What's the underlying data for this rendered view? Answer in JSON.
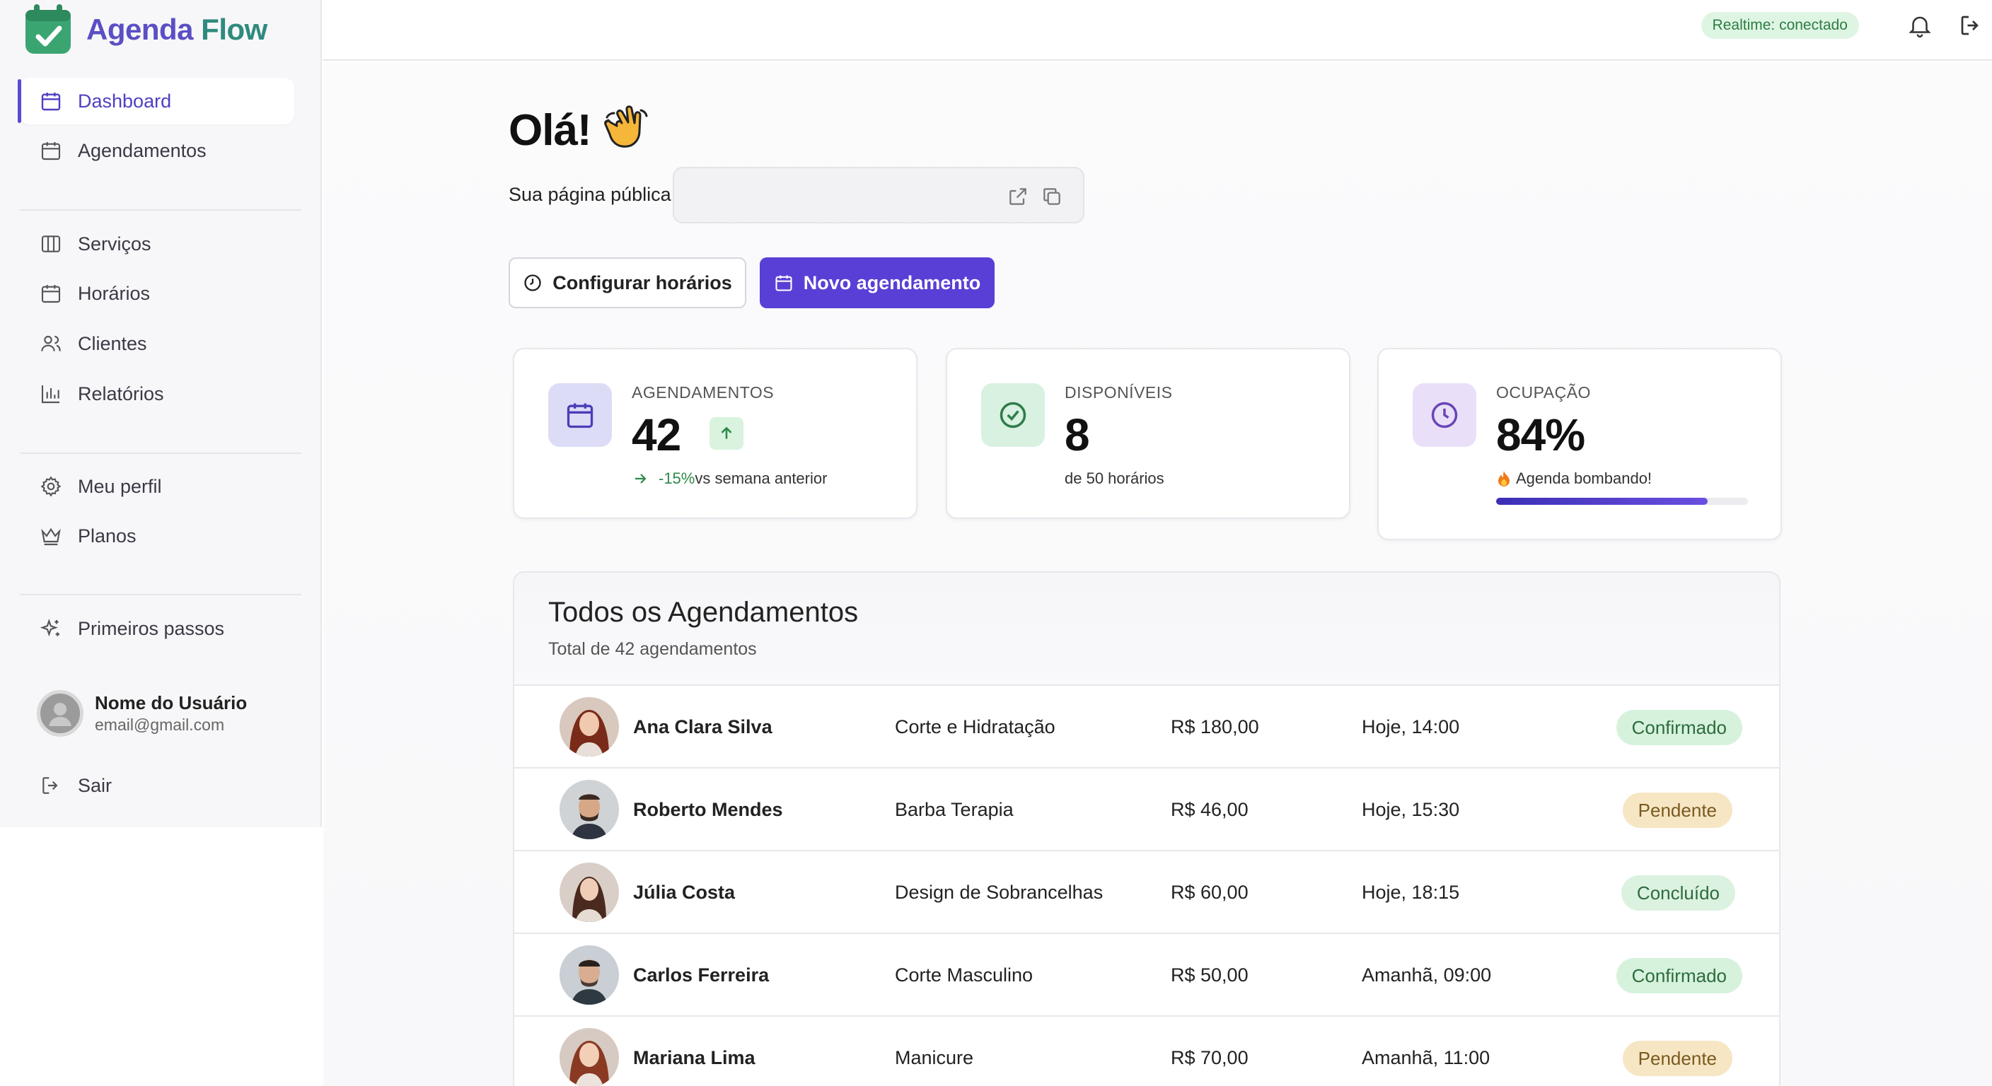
{
  "app": {
    "name_part1": "Agenda",
    "name_part2": " Flow"
  },
  "sidebar": {
    "items": [
      {
        "label": "Dashboard"
      },
      {
        "label": "Agendamentos"
      },
      {
        "label": "Serviços"
      },
      {
        "label": "Horários"
      },
      {
        "label": "Clientes"
      },
      {
        "label": "Relatórios"
      },
      {
        "label": "Meu perfil"
      },
      {
        "label": "Planos"
      },
      {
        "label": "Primeiros passos"
      }
    ],
    "user": {
      "name": "Nome do Usuário",
      "email": "email@gmail.com"
    },
    "logout": "Sair"
  },
  "topbar": {
    "realtime": "Realtime: conectado"
  },
  "main": {
    "greeting": "Olá!",
    "public_label": "Sua página pública:",
    "public_value": "",
    "btn_config": "Configurar horários",
    "btn_new": "Novo agendamento"
  },
  "stats": [
    {
      "label": "AGENDAMENTOS",
      "value": "42",
      "trend_pct": "-15%",
      "trend_text": " vs semana anterior"
    },
    {
      "label": "DISPONÍVEIS",
      "value": "8",
      "sub": "de 50 horários"
    },
    {
      "label": "OCUPAÇÃO",
      "value": "84%",
      "sub": "Agenda bombando!",
      "progress": 0.84
    }
  ],
  "table": {
    "title": "Todos os Agendamentos",
    "subtitle": "Total de 42 agendamentos",
    "rows": [
      {
        "name": "Ana Clara Silva",
        "service": "Corte e Hidratação",
        "price": "R$ 180,00",
        "date": "Hoje, 14:00",
        "status": "Confirmado"
      },
      {
        "name": "Roberto Mendes",
        "service": "Barba Terapia",
        "price": "R$ 46,00",
        "date": "Hoje, 15:30",
        "status": "Pendente"
      },
      {
        "name": "Júlia Costa",
        "service": "Design de Sobrancelhas",
        "price": "R$ 60,00",
        "date": "Hoje, 18:15",
        "status": "Concluído"
      },
      {
        "name": "Carlos Ferreira",
        "service": "Corte Masculino",
        "price": "R$ 50,00",
        "date": "Amanhã, 09:00",
        "status": "Confirmado"
      },
      {
        "name": "Mariana Lima",
        "service": "Manicure",
        "price": "R$ 70,00",
        "date": "Amanhã, 11:00",
        "status": "Pendente"
      }
    ]
  },
  "colors": {
    "brand_green": "#2f8a7e",
    "brand_purple": "#5a3fd6",
    "confirmado_bg": "#d6f2dd",
    "pendente_bg": "#f6e6c4",
    "concluido_bg": "#dcf2e0"
  }
}
